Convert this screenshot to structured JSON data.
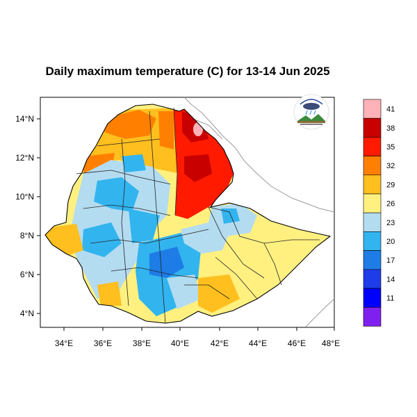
{
  "title": "Daily maximum temperature (C) for 13-14 Jun 2025",
  "map": {
    "region": "Ethiopia",
    "variable": "daily maximum temperature",
    "unit": "C",
    "lon_range": [
      33,
      48
    ],
    "lat_range": [
      3.2,
      15
    ],
    "x_ticks": [
      "34°E",
      "36°E",
      "38°E",
      "40°E",
      "42°E",
      "44°E",
      "46°E",
      "48°E"
    ],
    "y_ticks": [
      "14°N",
      "12°N",
      "10°N",
      "8°N",
      "6°N",
      "4°N"
    ],
    "logo_icon": "meteorology-agency-logo-icon"
  },
  "colorbar": {
    "labels": [
      "41",
      "38",
      "35",
      "32",
      "29",
      "26",
      "23",
      "20",
      "17",
      "14",
      "11"
    ],
    "colors": [
      "#ffb3b8",
      "#c80000",
      "#ff1a00",
      "#ff8000",
      "#ffbf1f",
      "#fff080",
      "#b4dcf0",
      "#32b4ef",
      "#1e7ce6",
      "#1e3ce8",
      "#0000ff",
      "#8020f0"
    ]
  }
}
